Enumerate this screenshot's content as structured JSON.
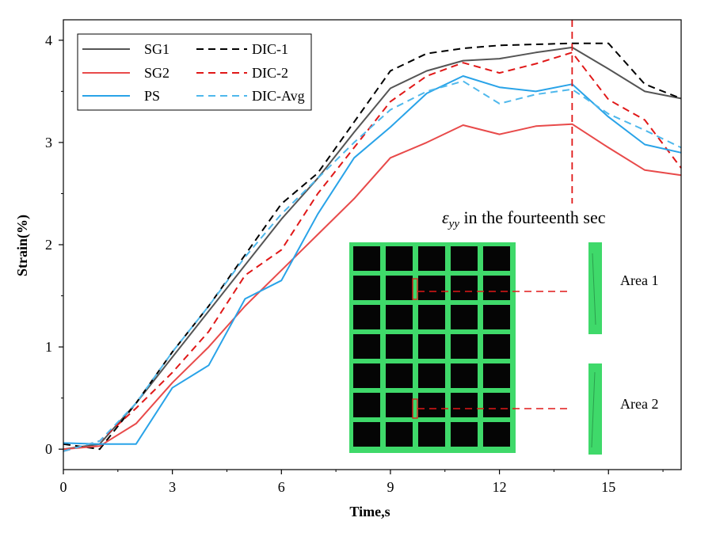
{
  "chart_data": {
    "type": "line",
    "title": "",
    "xlabel": "Time,s",
    "ylabel": "Strain(%)",
    "xlim": [
      0,
      17
    ],
    "ylim": [
      -0.2,
      4.2
    ],
    "xticks": [
      0,
      3,
      6,
      9,
      12,
      15
    ],
    "yticks": [
      0,
      1,
      2,
      3,
      4
    ],
    "series": [
      {
        "name": "SG1",
        "color": "#555555",
        "style": "solid",
        "x": [
          0,
          1,
          2,
          3,
          4,
          5,
          6,
          7,
          8,
          9,
          10,
          11,
          12,
          13,
          14,
          15,
          16,
          17
        ],
        "y": [
          0.0,
          0.05,
          0.45,
          0.9,
          1.35,
          1.8,
          2.25,
          2.65,
          3.1,
          3.53,
          3.7,
          3.8,
          3.82,
          3.88,
          3.93,
          3.72,
          3.5,
          3.43
        ]
      },
      {
        "name": "DIC-1",
        "color": "#000000",
        "style": "dashed",
        "x": [
          0,
          1,
          2,
          3,
          4,
          5,
          6,
          7,
          8,
          9,
          10,
          11,
          12,
          13,
          14,
          15,
          16,
          17
        ],
        "y": [
          0.05,
          0.0,
          0.45,
          0.95,
          1.4,
          1.9,
          2.4,
          2.7,
          3.2,
          3.7,
          3.87,
          3.92,
          3.95,
          3.96,
          3.97,
          3.97,
          3.57,
          3.43
        ]
      },
      {
        "name": "SG2",
        "color": "#e84a4a",
        "style": "solid",
        "x": [
          0,
          1,
          2,
          3,
          4,
          5,
          6,
          7,
          8,
          9,
          10,
          11,
          12,
          13,
          14,
          15,
          16,
          17
        ],
        "y": [
          0.0,
          0.03,
          0.25,
          0.65,
          1.0,
          1.4,
          1.75,
          2.1,
          2.45,
          2.85,
          3.0,
          3.17,
          3.08,
          3.16,
          3.18,
          2.95,
          2.73,
          2.68
        ]
      },
      {
        "name": "DIC-2",
        "color": "#e01818",
        "style": "dashed",
        "x": [
          0,
          1,
          2,
          3,
          4,
          5,
          6,
          7,
          8,
          9,
          10,
          11,
          12,
          13,
          14,
          15,
          16,
          17
        ],
        "y": [
          -0.02,
          0.08,
          0.4,
          0.75,
          1.15,
          1.7,
          1.95,
          2.5,
          2.95,
          3.4,
          3.65,
          3.78,
          3.68,
          3.77,
          3.88,
          3.42,
          3.22,
          2.75
        ]
      },
      {
        "name": "PS",
        "color": "#29a3e8",
        "style": "solid",
        "x": [
          0,
          1,
          2,
          3,
          4,
          5,
          6,
          7,
          8,
          9,
          10,
          11,
          12,
          13,
          14,
          15,
          16,
          17
        ],
        "y": [
          0.06,
          0.05,
          0.05,
          0.6,
          0.82,
          1.47,
          1.65,
          2.3,
          2.85,
          3.15,
          3.48,
          3.65,
          3.54,
          3.5,
          3.57,
          3.25,
          2.98,
          2.9
        ]
      },
      {
        "name": "DIC-Avg",
        "color": "#4fb8ec",
        "style": "dashed",
        "x": [
          0,
          1,
          2,
          3,
          4,
          5,
          6,
          7,
          8,
          9,
          10,
          11,
          12,
          13,
          14,
          15,
          16,
          17
        ],
        "y": [
          -0.02,
          0.08,
          0.45,
          0.95,
          1.4,
          1.88,
          2.3,
          2.65,
          3.0,
          3.32,
          3.5,
          3.6,
          3.38,
          3.47,
          3.52,
          3.28,
          3.12,
          2.95
        ]
      }
    ],
    "annotations": [
      {
        "text_symbol": "ε",
        "text_sub": "yy",
        "text_rest": " in the fourteenth sec",
        "x_at": 14
      },
      {
        "text": "Area 1"
      },
      {
        "text": "Area 2"
      }
    ]
  }
}
